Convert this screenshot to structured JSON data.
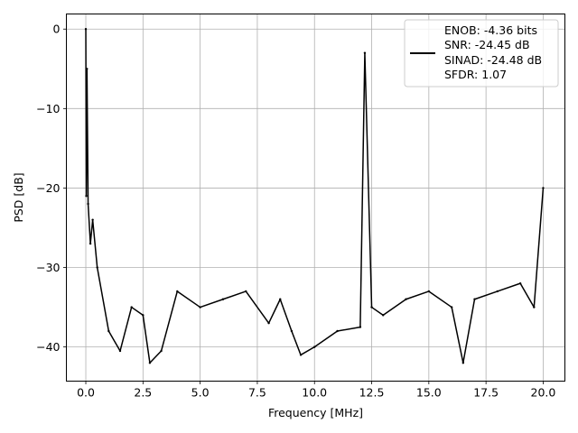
{
  "chart_data": {
    "type": "line",
    "title": "",
    "xlabel": "Frequency [MHz]",
    "ylabel": "PSD [dB]",
    "xlim": [
      -0.85,
      20.95
    ],
    "ylim": [
      -44.3,
      1.9
    ],
    "xticks": [
      0.0,
      2.5,
      5.0,
      7.5,
      10.0,
      12.5,
      15.0,
      17.5,
      20.0
    ],
    "xtick_labels": [
      "0.0",
      "2.5",
      "5.0",
      "7.5",
      "10.0",
      "12.5",
      "15.0",
      "17.5",
      "20.0"
    ],
    "yticks": [
      0,
      -10,
      -20,
      -30,
      -40
    ],
    "ytick_labels": [
      "0",
      "−10",
      "−20",
      "−30",
      "−40"
    ],
    "grid": true,
    "legend_position": "top-right",
    "legend": [
      "ENOB: -4.36 bits",
      "SNR: -24.45 dB",
      "SINAD: -24.48 dB",
      "SFDR: 1.07"
    ],
    "line_color": "#000000",
    "series": [
      {
        "x": [
          0.0,
          0.02,
          0.05,
          0.1,
          0.2,
          0.3,
          0.5,
          1.0,
          1.5,
          2.0,
          2.5,
          2.8,
          3.3,
          4.0,
          5.0,
          6.0,
          7.0,
          8.0,
          8.5,
          9.0,
          9.4,
          10.0,
          11.0,
          12.0,
          12.2,
          12.5,
          13.0,
          14.0,
          15.0,
          16.0,
          16.5,
          17.0,
          18.0,
          19.0,
          19.6,
          20.0
        ],
        "values": [
          0.0,
          -21.0,
          -5.0,
          -22.0,
          -27.0,
          -24.0,
          -30.0,
          -38.0,
          -40.5,
          -35.0,
          -36.0,
          -42.0,
          -40.5,
          -33.0,
          -35.0,
          -34.0,
          -33.0,
          -37.0,
          -34.0,
          -38.0,
          -41.0,
          -40.0,
          -38.0,
          -37.5,
          -3.0,
          -35.0,
          -36.0,
          -34.0,
          -33.0,
          -35.0,
          -42.0,
          -34.0,
          -33.0,
          -32.0,
          -35.0,
          -20.0
        ]
      }
    ]
  }
}
